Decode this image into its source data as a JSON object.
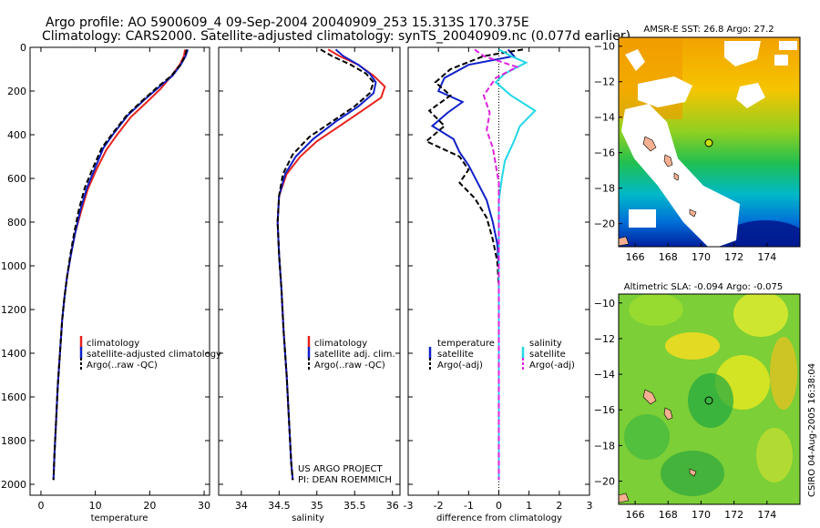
{
  "header": {
    "line1": "Argo profile: AO 5900609_4 09-Sep-2004 20040909_253 15.313S 170.375E",
    "line2": "Climatology: CARS2000. Satellite-adjusted climatology: synTS_20040909.nc (0.077d earlier)"
  },
  "credit": {
    "project": "US ARGO PROJECT",
    "pi": "PI: DEAN ROEMMICH"
  },
  "footer_stamp": "CSIRO 04-Aug-2005 16:38:04",
  "colors": {
    "climatology": "#e8231d",
    "satellite": "#1020c8",
    "argo": "#000000",
    "salinity_sat": "#22d8e8",
    "salinity_argo": "#e020e0"
  },
  "chart_data": [
    {
      "type": "line",
      "id": "temperature",
      "xlabel": "temperature",
      "ylabel": "",
      "xlim": [
        -2,
        31
      ],
      "ylim": [
        2050,
        0
      ],
      "xticks": [
        0,
        10,
        20,
        30
      ],
      "yticks": [
        0,
        200,
        400,
        600,
        800,
        1000,
        1200,
        1400,
        1600,
        1800,
        2000
      ],
      "series": [
        {
          "name": "climatology",
          "color": "#e8231d",
          "dash": "",
          "points": [
            [
              26.5,
              10
            ],
            [
              26.3,
              40
            ],
            [
              25.5,
              80
            ],
            [
              24,
              130
            ],
            [
              22,
              190
            ],
            [
              19.5,
              250
            ],
            [
              16.5,
              320
            ],
            [
              14,
              400
            ],
            [
              12,
              470
            ],
            [
              10.2,
              560
            ],
            [
              8.6,
              650
            ],
            [
              7.4,
              750
            ],
            [
              6.3,
              850
            ],
            [
              5.5,
              950
            ],
            [
              4.8,
              1050
            ],
            [
              4.3,
              1150
            ],
            [
              3.9,
              1250
            ],
            [
              3.5,
              1400
            ],
            [
              3.1,
              1550
            ],
            [
              2.8,
              1700
            ],
            [
              2.5,
              1850
            ],
            [
              2.3,
              1980
            ]
          ]
        },
        {
          "name": "satellite-adjusted climatology",
          "color": "#1020c8",
          "dash": "",
          "points": [
            [
              27,
              10
            ],
            [
              26.6,
              40
            ],
            [
              25.7,
              80
            ],
            [
              24.2,
              130
            ],
            [
              21.8,
              180
            ],
            [
              19,
              240
            ],
            [
              16,
              310
            ],
            [
              13.5,
              390
            ],
            [
              11.5,
              460
            ],
            [
              10,
              550
            ],
            [
              8.5,
              640
            ],
            [
              7.3,
              740
            ],
            [
              6.3,
              850
            ],
            [
              5.5,
              950
            ],
            [
              4.8,
              1050
            ],
            [
              4.3,
              1150
            ],
            [
              3.9,
              1250
            ],
            [
              3.5,
              1400
            ],
            [
              3.1,
              1550
            ],
            [
              2.8,
              1700
            ],
            [
              2.5,
              1850
            ],
            [
              2.3,
              1980
            ]
          ]
        },
        {
          "name": "Argo(..raw -QC)",
          "color": "#000000",
          "dash": "6,3",
          "points": [
            [
              26.8,
              10
            ],
            [
              26.5,
              40
            ],
            [
              25.6,
              80
            ],
            [
              24,
              130
            ],
            [
              21.5,
              180
            ],
            [
              18.8,
              240
            ],
            [
              15.8,
              310
            ],
            [
              13.3,
              390
            ],
            [
              11.2,
              460
            ],
            [
              9.6,
              550
            ],
            [
              8.1,
              640
            ],
            [
              7,
              740
            ],
            [
              6.1,
              850
            ],
            [
              5.4,
              950
            ],
            [
              4.8,
              1050
            ],
            [
              4.3,
              1150
            ],
            [
              3.9,
              1250
            ],
            [
              3.5,
              1400
            ],
            [
              3.1,
              1550
            ],
            [
              2.8,
              1700
            ],
            [
              2.5,
              1850
            ],
            [
              2.3,
              1980
            ]
          ]
        }
      ],
      "legend": [
        "climatology",
        "satellite-adjusted climatology",
        "Argo(..raw -QC)"
      ]
    },
    {
      "type": "line",
      "id": "salinity",
      "xlabel": "salinity",
      "ylabel": "",
      "xlim": [
        33.7,
        36.1
      ],
      "ylim": [
        2050,
        0
      ],
      "xticks": [
        34,
        34.5,
        35,
        35.5,
        36
      ],
      "yticks": [],
      "series": [
        {
          "name": "climatology",
          "color": "#e8231d",
          "dash": "",
          "points": [
            [
              35.15,
              10
            ],
            [
              35.3,
              40
            ],
            [
              35.55,
              80
            ],
            [
              35.75,
              130
            ],
            [
              35.9,
              180
            ],
            [
              35.85,
              230
            ],
            [
              35.6,
              290
            ],
            [
              35.3,
              360
            ],
            [
              35,
              430
            ],
            [
              34.78,
              500
            ],
            [
              34.6,
              580
            ],
            [
              34.5,
              680
            ],
            [
              34.48,
              800
            ],
            [
              34.5,
              950
            ],
            [
              34.53,
              1100
            ],
            [
              34.56,
              1300
            ],
            [
              34.6,
              1500
            ],
            [
              34.63,
              1700
            ],
            [
              34.66,
              1900
            ],
            [
              34.68,
              1980
            ]
          ]
        },
        {
          "name": "satellite adj. clim.",
          "color": "#1020c8",
          "dash": "",
          "points": [
            [
              35.25,
              10
            ],
            [
              35.35,
              40
            ],
            [
              35.55,
              80
            ],
            [
              35.7,
              120
            ],
            [
              35.78,
              160
            ],
            [
              35.75,
              210
            ],
            [
              35.55,
              270
            ],
            [
              35.25,
              340
            ],
            [
              34.95,
              420
            ],
            [
              34.72,
              500
            ],
            [
              34.58,
              580
            ],
            [
              34.5,
              680
            ],
            [
              34.48,
              800
            ],
            [
              34.5,
              950
            ],
            [
              34.53,
              1100
            ],
            [
              34.56,
              1300
            ],
            [
              34.6,
              1500
            ],
            [
              34.63,
              1700
            ],
            [
              34.66,
              1900
            ],
            [
              34.68,
              1980
            ]
          ]
        },
        {
          "name": "Argo(..raw -QC)",
          "color": "#000000",
          "dash": "6,3",
          "points": [
            [
              35.05,
              10
            ],
            [
              35.2,
              40
            ],
            [
              35.45,
              80
            ],
            [
              35.65,
              120
            ],
            [
              35.75,
              160
            ],
            [
              35.7,
              210
            ],
            [
              35.5,
              270
            ],
            [
              35.2,
              340
            ],
            [
              34.9,
              410
            ],
            [
              34.68,
              490
            ],
            [
              34.55,
              580
            ],
            [
              34.5,
              680
            ],
            [
              34.48,
              800
            ],
            [
              34.5,
              950
            ],
            [
              34.53,
              1100
            ],
            [
              34.56,
              1300
            ],
            [
              34.6,
              1500
            ],
            [
              34.63,
              1700
            ],
            [
              34.66,
              1900
            ],
            [
              34.68,
              1980
            ]
          ]
        }
      ],
      "legend": [
        "climatology",
        "satellite adj. clim.",
        "Argo(..raw -QC)"
      ]
    },
    {
      "type": "line",
      "id": "difference",
      "xlabel": "difference from climatology",
      "ylabel": "",
      "xlim": [
        -3,
        3
      ],
      "ylim": [
        2050,
        0
      ],
      "xticks": [
        -3,
        -2,
        -1,
        0,
        1,
        2,
        3
      ],
      "yticks": [],
      "series": [
        {
          "name": "temperature satellite",
          "color": "#1020c8",
          "dash": "",
          "points": [
            [
              0.3,
              10
            ],
            [
              0.5,
              40
            ],
            [
              -1,
              80
            ],
            [
              -1.8,
              140
            ],
            [
              -2,
              200
            ],
            [
              -1.2,
              250
            ],
            [
              -1.7,
              300
            ],
            [
              -2.2,
              360
            ],
            [
              -1.5,
              420
            ],
            [
              -1.3,
              480
            ],
            [
              -1,
              540
            ],
            [
              -0.7,
              620
            ],
            [
              -0.4,
              700
            ],
            [
              -0.2,
              800
            ],
            [
              -0.05,
              900
            ],
            [
              0,
              1000
            ],
            [
              0,
              1300
            ],
            [
              0,
              1980
            ]
          ]
        },
        {
          "name": "temperature Argo(-adj)",
          "color": "#000000",
          "dash": "6,3",
          "points": [
            [
              0.8,
              10
            ],
            [
              -0.5,
              40
            ],
            [
              -1.6,
              100
            ],
            [
              -2.1,
              160
            ],
            [
              -1.6,
              220
            ],
            [
              -2.3,
              290
            ],
            [
              -1.8,
              360
            ],
            [
              -2.4,
              430
            ],
            [
              -1.3,
              500
            ],
            [
              -1,
              560
            ],
            [
              -1.3,
              620
            ],
            [
              -0.8,
              690
            ],
            [
              -0.4,
              780
            ],
            [
              -0.2,
              880
            ],
            [
              -0.05,
              980
            ],
            [
              0,
              1100
            ],
            [
              0,
              1980
            ]
          ]
        },
        {
          "name": "salinity satellite",
          "color": "#22d8e8",
          "dash": "",
          "points": [
            [
              0,
              10
            ],
            [
              0.4,
              40
            ],
            [
              0.9,
              70
            ],
            [
              0.2,
              120
            ],
            [
              -0.1,
              160
            ],
            [
              0.4,
              220
            ],
            [
              1.2,
              290
            ],
            [
              0.7,
              360
            ],
            [
              0.5,
              430
            ],
            [
              0.2,
              520
            ],
            [
              0.1,
              600
            ],
            [
              0,
              700
            ],
            [
              0,
              1980
            ]
          ]
        },
        {
          "name": "salinity Argo(-adj)",
          "color": "#e020e0",
          "dash": "6,3",
          "points": [
            [
              -0.8,
              10
            ],
            [
              -0.5,
              40
            ],
            [
              0.6,
              90
            ],
            [
              -0.1,
              140
            ],
            [
              -0.5,
              220
            ],
            [
              -0.3,
              300
            ],
            [
              -0.4,
              380
            ],
            [
              -0.2,
              460
            ],
            [
              -0.1,
              540
            ],
            [
              0,
              620
            ],
            [
              0,
              1980
            ]
          ]
        }
      ],
      "legend": [
        "temperature",
        "satellite",
        "Argo(-adj)",
        "salinity",
        "satellite",
        "Argo(-adj)"
      ]
    },
    {
      "type": "heatmap",
      "id": "sst-map",
      "title": "AMSR-E SST: 26.8 Argo: 27.2",
      "xticks": [
        166,
        168,
        170,
        172,
        174
      ],
      "yticks": [
        -10,
        -12,
        -14,
        -16,
        -18,
        -20
      ],
      "xlim": [
        165,
        176
      ],
      "ylim": [
        -21.3,
        -9.5
      ],
      "argo_point": [
        170.4,
        -15.3
      ]
    },
    {
      "type": "heatmap",
      "id": "sla-map",
      "title": "Altimetric SLA: -0.094 Argo: -0.075",
      "xticks": [
        166,
        168,
        170,
        172,
        174
      ],
      "yticks": [
        -10,
        -12,
        -14,
        -16,
        -18,
        -20
      ],
      "xlim": [
        165,
        176
      ],
      "ylim": [
        -21.3,
        -9.5
      ],
      "argo_point": [
        170.4,
        -15.3
      ]
    }
  ]
}
